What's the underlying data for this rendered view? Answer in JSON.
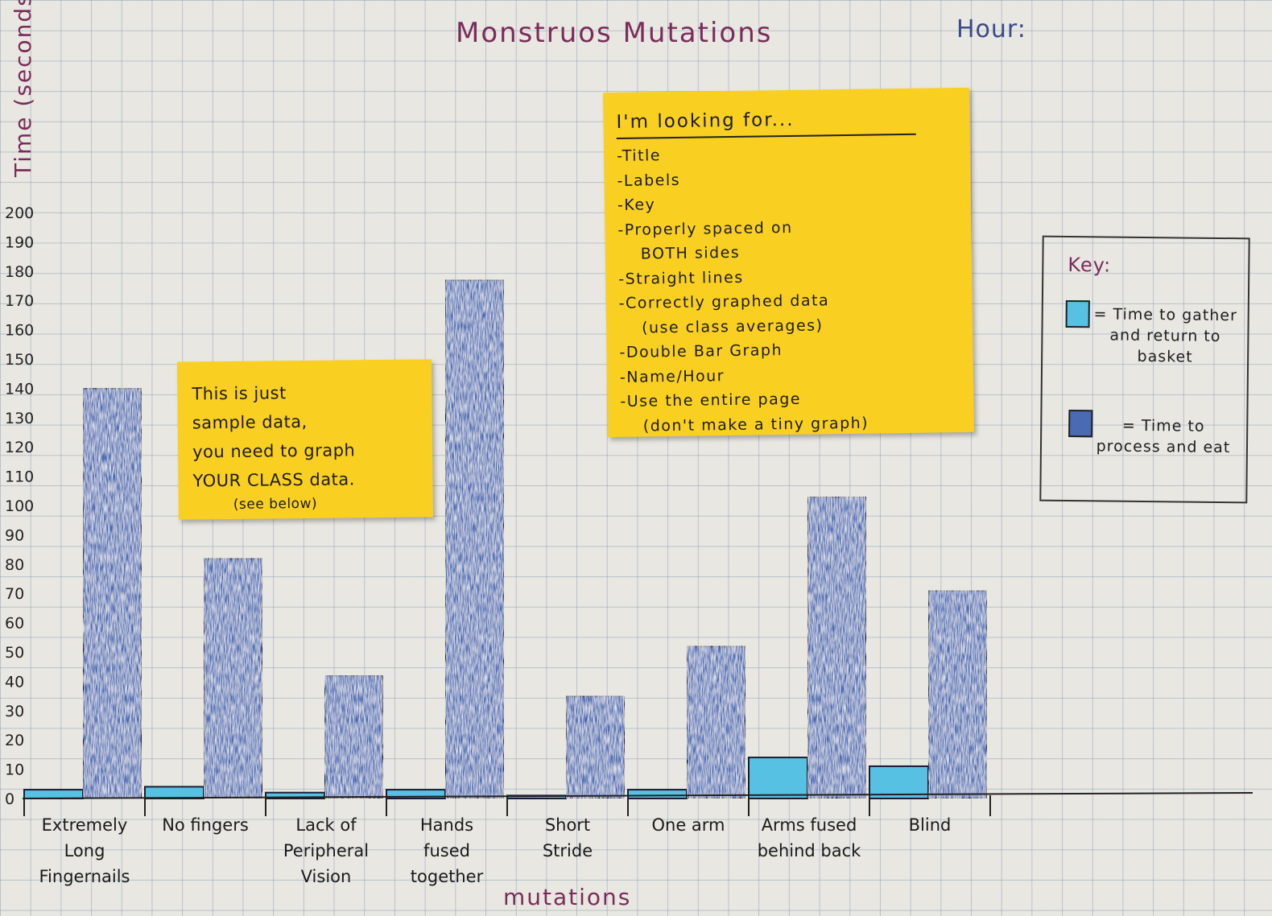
{
  "chart_data": {
    "type": "bar",
    "title": "Monstruos Mutations",
    "ylabel": "Time (seconds)",
    "xlabel": "mutations",
    "ylim": [
      0,
      200
    ],
    "yticks": [
      0,
      10,
      20,
      30,
      40,
      50,
      60,
      70,
      80,
      90,
      100,
      110,
      120,
      130,
      140,
      150,
      160,
      170,
      180,
      190,
      200
    ],
    "categories": [
      [
        "Extremely",
        "Long",
        "Fingernails"
      ],
      [
        "No fingers"
      ],
      [
        "Lack of",
        "Peripheral",
        "Vision"
      ],
      [
        "Hands",
        "fused",
        "together"
      ],
      [
        "Short",
        "Stride"
      ],
      [
        "One arm"
      ],
      [
        "Arms fused",
        "behind back"
      ],
      [
        "Blind"
      ]
    ],
    "series": [
      {
        "values": [
          3,
          4,
          2,
          3,
          1,
          3,
          14,
          11
        ],
        "color": "#56c1e2"
      },
      {
        "values": [
          140,
          82,
          42,
          177,
          35,
          52,
          103,
          71
        ],
        "color": "#4a6ab3"
      }
    ],
    "grid": true,
    "legend_position": "right"
  },
  "header": {
    "hour_label": "Hour:"
  },
  "sample_note": {
    "lines": [
      "This is just",
      "sample data,",
      "you need to graph",
      "YOUR CLASS data."
    ],
    "footnote": "(see below)"
  },
  "criteria_note": {
    "heading": "I'm looking for...",
    "items": [
      "-Title",
      "-Labels",
      "-Key",
      "-Properly spaced on",
      "BOTH sides",
      "-Straight lines",
      "-Correctly graphed data",
      "(use class averages)",
      "-Double Bar Graph",
      "-Name/Hour",
      "-Use the entire page",
      "(don't make a tiny graph)"
    ]
  },
  "key": {
    "title": "Key:",
    "entries": [
      {
        "label": "= Time to gather and return to basket",
        "color": "#56c1e2"
      },
      {
        "label": "= Time to process and eat",
        "color": "#4a6ab3"
      }
    ]
  }
}
